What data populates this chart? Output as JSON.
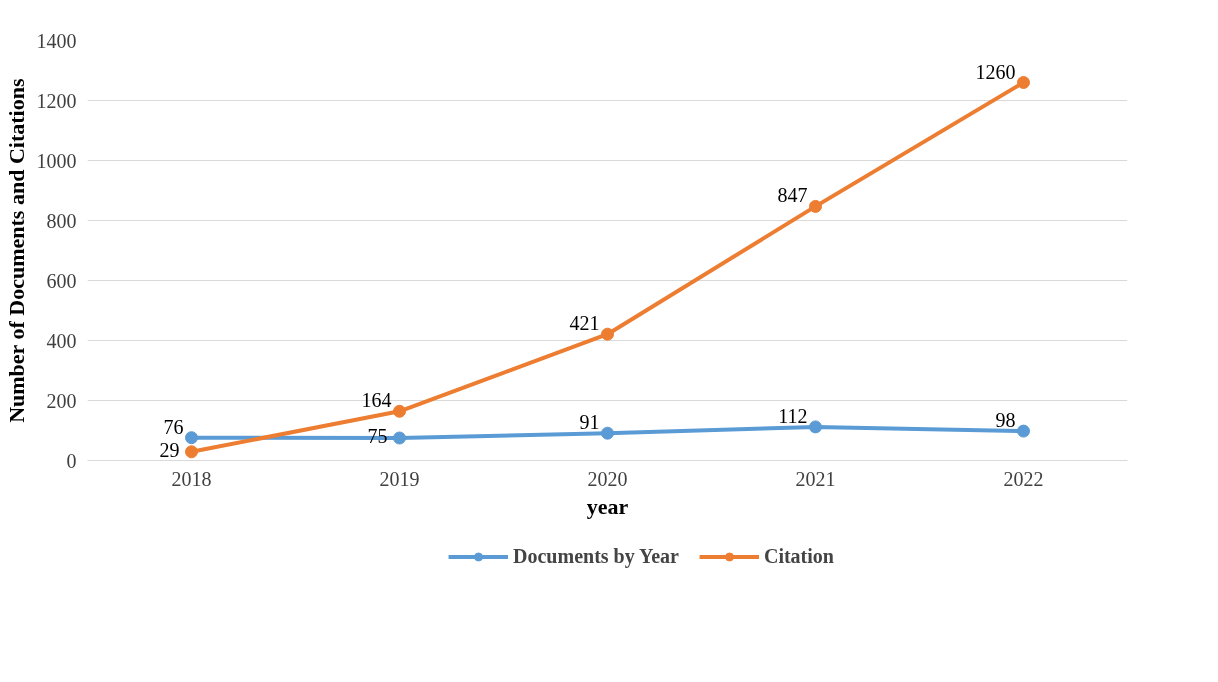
{
  "chart_data": {
    "type": "line",
    "xlabel": "year",
    "ylabel": "Number of Documents and Citations",
    "categories": [
      "2018",
      "2019",
      "2020",
      "2021",
      "2022"
    ],
    "series": [
      {
        "name": "Documents by Year",
        "color": "#5b9bd5",
        "values": [
          76,
          75,
          91,
          112,
          98
        ]
      },
      {
        "name": "Citation",
        "color": "#ed7d31",
        "values": [
          29,
          164,
          421,
          847,
          1260
        ]
      }
    ],
    "ylim": [
      0,
      1400
    ],
    "yticks": [
      0,
      200,
      400,
      600,
      800,
      1000,
      1200,
      1400
    ],
    "grid": "y",
    "legend": "bottom",
    "marker": "circle",
    "line_style": "solid",
    "data_labels": true
  }
}
